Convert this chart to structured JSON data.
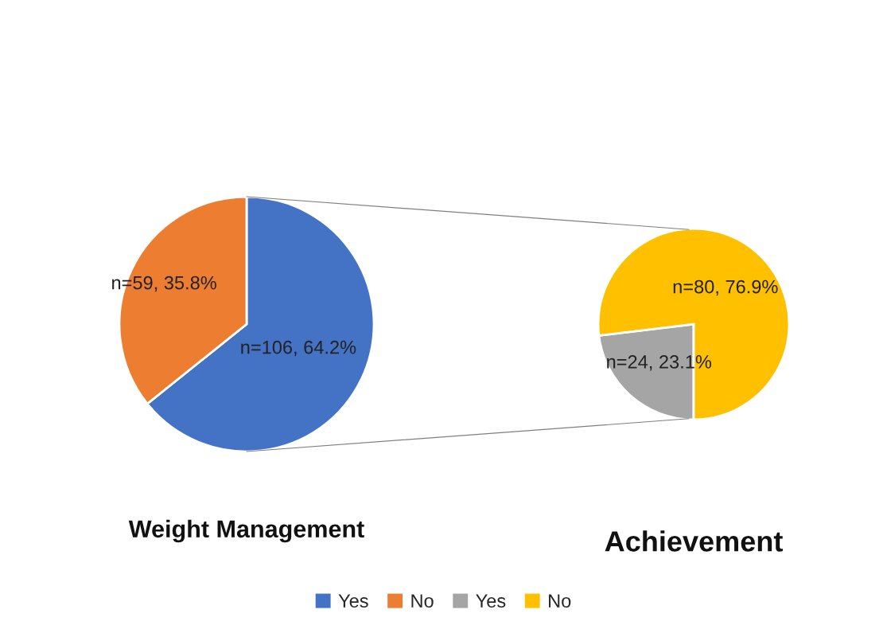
{
  "chart_data": [
    {
      "type": "pie",
      "title": "Weight Management",
      "categories": [
        "Yes",
        "No"
      ],
      "values": [
        106,
        59
      ],
      "colors": [
        "#4472c4",
        "#ed7d31"
      ],
      "value_labels": [
        "n=106, 64.2%",
        "n=59, 35.8%"
      ],
      "legend": "bottom"
    },
    {
      "type": "pie",
      "title": "Achievement",
      "categories": [
        "Yes",
        "No"
      ],
      "values": [
        24,
        80
      ],
      "colors": [
        "#a5a5a5",
        "#ffc000"
      ],
      "value_labels": [
        "n=24, 23.1%",
        "n=80, 76.9%"
      ],
      "legend": "bottom"
    }
  ]
}
